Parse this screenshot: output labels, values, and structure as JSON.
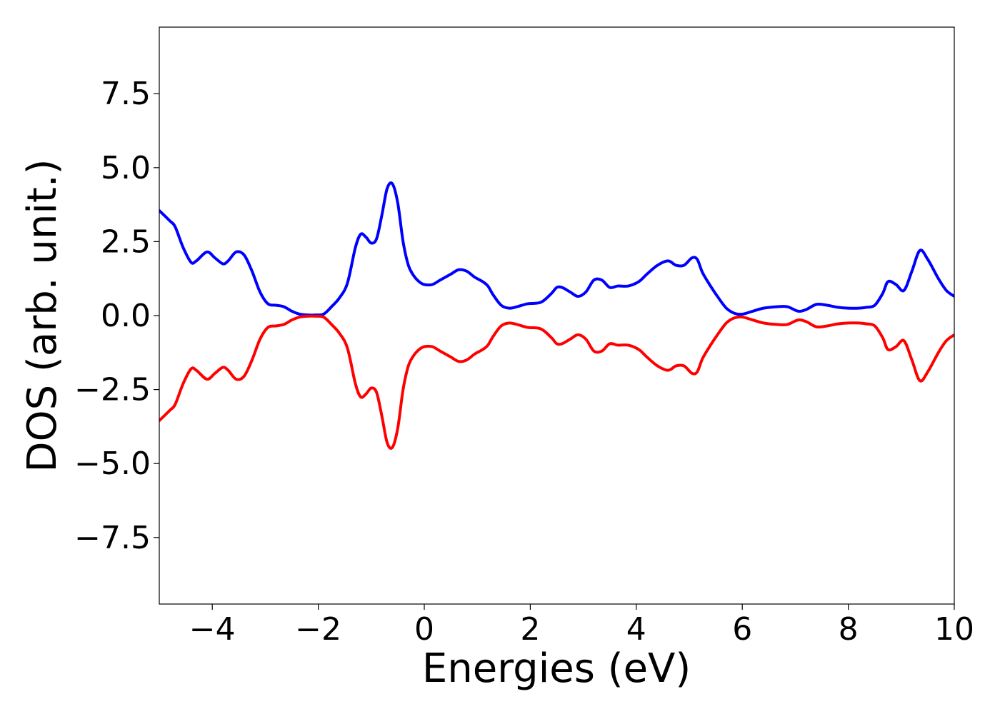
{
  "chart_data": {
    "type": "line",
    "title": "",
    "xlabel": "Energies (eV)",
    "ylabel": "DOS (arb. unit.)",
    "xlim": [
      -5,
      10
    ],
    "ylim": [
      -9.75,
      9.75
    ],
    "grid": false,
    "legend": "none",
    "x_ticks": [
      -4,
      -2,
      0,
      2,
      4,
      6,
      8,
      10
    ],
    "x_tick_labels": [
      "−4",
      "−2",
      "0",
      "2",
      "4",
      "6",
      "8",
      "10"
    ],
    "y_ticks": [
      -7.5,
      -5.0,
      -2.5,
      0.0,
      2.5,
      5.0,
      7.5
    ],
    "y_tick_labels": [
      "−7.5",
      "−5.0",
      "−2.5",
      "0.0",
      "2.5",
      "5.0",
      "7.5"
    ],
    "series": [
      {
        "color": "#0000ff",
        "x": [
          -5.0,
          -4.8,
          -4.7,
          -4.55,
          -4.4,
          -4.3,
          -4.1,
          -3.95,
          -3.8,
          -3.7,
          -3.55,
          -3.4,
          -3.25,
          -3.1,
          -2.95,
          -2.8,
          -2.65,
          -2.5,
          -2.35,
          -2.2,
          -2.05,
          -1.9,
          -1.75,
          -1.6,
          -1.45,
          -1.3,
          -1.2,
          -1.1,
          -1.0,
          -0.9,
          -0.8,
          -0.7,
          -0.6,
          -0.5,
          -0.4,
          -0.3,
          -0.2,
          -0.1,
          0.0,
          0.15,
          0.3,
          0.5,
          0.65,
          0.8,
          0.95,
          1.1,
          1.2,
          1.3,
          1.45,
          1.6,
          1.75,
          1.95,
          2.2,
          2.4,
          2.5,
          2.6,
          2.75,
          2.9,
          3.05,
          3.2,
          3.35,
          3.5,
          3.65,
          3.85,
          4.05,
          4.2,
          4.4,
          4.6,
          4.75,
          4.9,
          5.05,
          5.15,
          5.25,
          5.4,
          5.55,
          5.7,
          5.85,
          6.0,
          6.2,
          6.4,
          6.65,
          6.85,
          7.05,
          7.2,
          7.4,
          7.6,
          7.8,
          8.0,
          8.2,
          8.35,
          8.5,
          8.65,
          8.75,
          8.9,
          9.05,
          9.2,
          9.35,
          9.5,
          9.7,
          9.85,
          10.0
        ],
        "y": [
          3.55,
          3.2,
          3.0,
          2.3,
          1.8,
          1.85,
          2.15,
          1.95,
          1.75,
          1.85,
          2.15,
          2.05,
          1.5,
          0.8,
          0.4,
          0.35,
          0.3,
          0.15,
          0.05,
          0.02,
          0.02,
          0.05,
          0.3,
          0.6,
          1.1,
          2.3,
          2.75,
          2.65,
          2.45,
          2.6,
          3.4,
          4.3,
          4.45,
          3.8,
          2.5,
          1.7,
          1.35,
          1.15,
          1.05,
          1.05,
          1.2,
          1.4,
          1.55,
          1.5,
          1.3,
          1.15,
          1.0,
          0.7,
          0.35,
          0.25,
          0.3,
          0.4,
          0.45,
          0.75,
          0.95,
          0.95,
          0.8,
          0.65,
          0.8,
          1.2,
          1.2,
          0.95,
          1.0,
          1.0,
          1.15,
          1.4,
          1.7,
          1.85,
          1.7,
          1.7,
          1.95,
          1.9,
          1.45,
          1.0,
          0.6,
          0.25,
          0.08,
          0.05,
          0.15,
          0.25,
          0.3,
          0.3,
          0.15,
          0.2,
          0.38,
          0.35,
          0.28,
          0.25,
          0.25,
          0.28,
          0.35,
          0.75,
          1.15,
          1.05,
          0.85,
          1.5,
          2.2,
          1.9,
          1.25,
          0.85,
          0.65
        ]
      },
      {
        "color": "#ff0000",
        "x": [
          -5.0,
          -4.8,
          -4.7,
          -4.55,
          -4.4,
          -4.3,
          -4.1,
          -3.95,
          -3.8,
          -3.7,
          -3.55,
          -3.4,
          -3.25,
          -3.1,
          -2.95,
          -2.8,
          -2.65,
          -2.5,
          -2.35,
          -2.2,
          -2.05,
          -1.9,
          -1.75,
          -1.6,
          -1.45,
          -1.3,
          -1.2,
          -1.1,
          -1.0,
          -0.9,
          -0.8,
          -0.7,
          -0.6,
          -0.5,
          -0.4,
          -0.3,
          -0.2,
          -0.1,
          0.0,
          0.15,
          0.3,
          0.5,
          0.65,
          0.8,
          0.95,
          1.1,
          1.2,
          1.3,
          1.45,
          1.6,
          1.75,
          1.95,
          2.2,
          2.4,
          2.5,
          2.6,
          2.75,
          2.9,
          3.05,
          3.2,
          3.35,
          3.5,
          3.65,
          3.85,
          4.05,
          4.2,
          4.4,
          4.6,
          4.75,
          4.9,
          5.05,
          5.15,
          5.25,
          5.4,
          5.55,
          5.7,
          5.85,
          6.0,
          6.2,
          6.4,
          6.65,
          6.85,
          7.05,
          7.2,
          7.4,
          7.6,
          7.8,
          8.0,
          8.2,
          8.35,
          8.5,
          8.65,
          8.75,
          8.9,
          9.05,
          9.2,
          9.35,
          9.5,
          9.7,
          9.85,
          10.0
        ],
        "y": [
          -3.55,
          -3.2,
          -3.0,
          -2.3,
          -1.8,
          -1.85,
          -2.15,
          -1.95,
          -1.75,
          -1.85,
          -2.15,
          -2.05,
          -1.5,
          -0.8,
          -0.4,
          -0.35,
          -0.3,
          -0.15,
          -0.05,
          -0.02,
          -0.02,
          -0.05,
          -0.3,
          -0.6,
          -1.1,
          -2.3,
          -2.75,
          -2.65,
          -2.45,
          -2.6,
          -3.4,
          -4.3,
          -4.45,
          -3.8,
          -2.5,
          -1.7,
          -1.35,
          -1.15,
          -1.05,
          -1.05,
          -1.2,
          -1.4,
          -1.55,
          -1.5,
          -1.3,
          -1.15,
          -1.0,
          -0.7,
          -0.35,
          -0.25,
          -0.3,
          -0.4,
          -0.45,
          -0.75,
          -0.95,
          -0.95,
          -0.8,
          -0.65,
          -0.8,
          -1.2,
          -1.2,
          -0.95,
          -1.0,
          -1.0,
          -1.15,
          -1.4,
          -1.7,
          -1.85,
          -1.7,
          -1.7,
          -1.95,
          -1.9,
          -1.45,
          -1.0,
          -0.6,
          -0.25,
          -0.08,
          -0.05,
          -0.15,
          -0.25,
          -0.3,
          -0.3,
          -0.15,
          -0.2,
          -0.38,
          -0.35,
          -0.28,
          -0.25,
          -0.25,
          -0.28,
          -0.35,
          -0.75,
          -1.15,
          -1.05,
          -0.85,
          -1.5,
          -2.2,
          -1.9,
          -1.25,
          -0.85,
          -0.65
        ]
      }
    ]
  }
}
